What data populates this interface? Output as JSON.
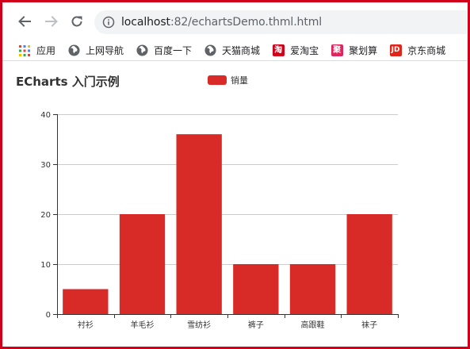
{
  "browser": {
    "url_host": "localhost",
    "url_path": ":82/echartsDemo.thml.html",
    "icons": {
      "back": "arrow-left-icon",
      "forward": "arrow-right-icon",
      "reload": "reload-icon",
      "info": "info-icon"
    }
  },
  "bookmarks": [
    {
      "label": "应用",
      "icon": "apps-grid-icon"
    },
    {
      "label": "上网导航",
      "icon": "globe-icon"
    },
    {
      "label": "百度一下",
      "icon": "globe-icon"
    },
    {
      "label": "天猫商城",
      "icon": "globe-icon"
    },
    {
      "label": "爱淘宝",
      "icon": "taobao-icon",
      "badge": "淘",
      "color": "#d0021b"
    },
    {
      "label": "聚划算",
      "icon": "juhuasuan-icon",
      "badge": "聚",
      "color": "#e0245e"
    },
    {
      "label": "京东商城",
      "icon": "jd-icon",
      "badge": "JD",
      "color": "#e1251b"
    }
  ],
  "chart_data": {
    "type": "bar",
    "title": "ECharts 入门示例",
    "categories": [
      "衬衫",
      "羊毛衫",
      "雪纺衫",
      "裤子",
      "高跟鞋",
      "袜子"
    ],
    "series": [
      {
        "name": "销量",
        "values": [
          5,
          20,
          36,
          10,
          10,
          20
        ],
        "color": "#d82b28"
      }
    ],
    "y_ticks": [
      "0",
      "10",
      "20",
      "30",
      "40"
    ],
    "ylim": [
      0,
      40
    ],
    "grid": true,
    "legend_position": "top-center"
  }
}
